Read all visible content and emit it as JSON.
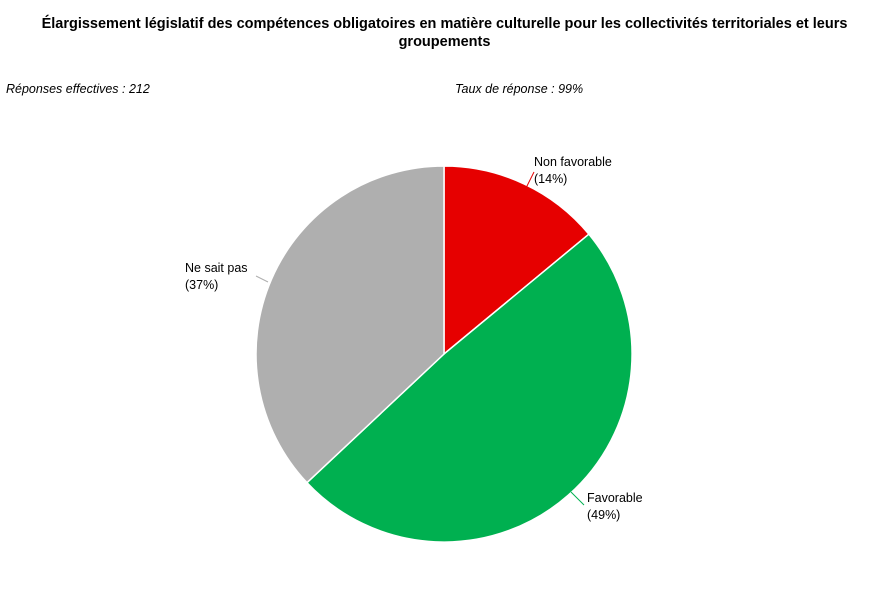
{
  "title_line1": "Élargissement législatif des compétences obligatoires en matière culturelle pour les collectivités territoriales et leurs",
  "title_line2": "groupements",
  "responses_label": "Réponses effectives : 212",
  "response_rate_label": "Taux de réponse : 99%",
  "chart_data": {
    "type": "pie",
    "title": "Élargissement législatif des compétences obligatoires en matière culturelle pour les collectivités territoriales et leurs groupements",
    "start": "12 o'clock",
    "direction": "clockwise",
    "slices": [
      {
        "label": "Non favorable",
        "value": 14,
        "value_label": "(14%)",
        "color": "#e60000"
      },
      {
        "label": "Favorable",
        "value": 49,
        "value_label": "(49%)",
        "color": "#00b050"
      },
      {
        "label": "Ne sait pas",
        "value": 37,
        "value_label": "(37%)",
        "color": "#afafaf"
      }
    ],
    "slice_border_color": "#ffffff",
    "legend": "none"
  }
}
